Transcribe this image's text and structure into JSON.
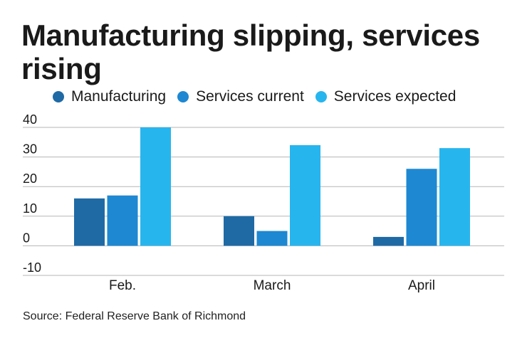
{
  "chart_data": {
    "type": "bar",
    "title": "Manufacturing slipping, services rising",
    "categories": [
      "Feb.",
      "March",
      "April"
    ],
    "series": [
      {
        "name": "Manufacturing",
        "color": "#1f6aa5",
        "values": [
          16,
          10,
          3
        ]
      },
      {
        "name": "Services current",
        "color": "#1e88d2",
        "values": [
          17,
          5,
          26
        ]
      },
      {
        "name": "Services expected",
        "color": "#27b5ee",
        "values": [
          40,
          34,
          33
        ]
      }
    ],
    "yticks": [
      40,
      30,
      20,
      10,
      0,
      -10
    ],
    "ylim": [
      -10,
      40
    ],
    "grid": true,
    "legend_position": "top",
    "source": "Source: Federal Reserve Bank of Richmond"
  }
}
